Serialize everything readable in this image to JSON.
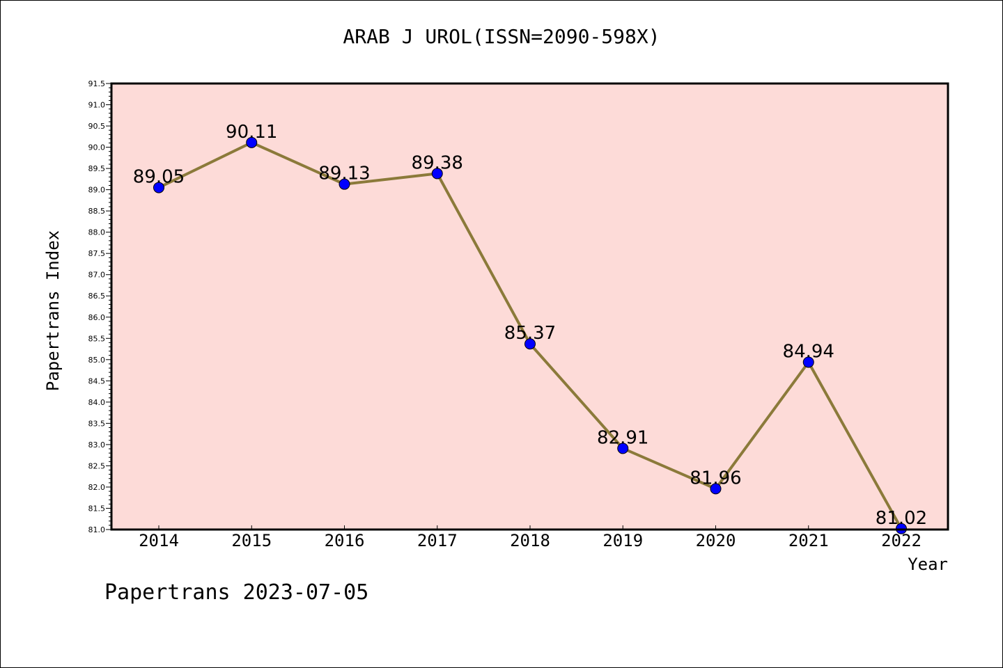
{
  "title": "ARAB J UROL(ISSN=2090-598X)",
  "footer": "Papertrans 2023-07-05",
  "chart_data": {
    "type": "line",
    "title": "ARAB J UROL(ISSN=2090-598X)",
    "xlabel": "Year",
    "ylabel": "Papertrans Index",
    "categories": [
      "2014",
      "2015",
      "2016",
      "2017",
      "2018",
      "2019",
      "2020",
      "2021",
      "2022"
    ],
    "series": [
      {
        "values": [
          89.05,
          90.11,
          89.13,
          89.38,
          85.37,
          82.91,
          81.96,
          84.94,
          81.02
        ],
        "data_labels": [
          "89.05",
          "90.11",
          "89.13",
          "89.38",
          "85.37",
          "82.91",
          "81.96",
          "84.94",
          "81.02"
        ]
      }
    ],
    "ylim": [
      81.0,
      91.5
    ],
    "ytick_step": 0.5,
    "ytick_labels": [
      "81.0",
      "81.5",
      "82.0",
      "82.5",
      "83.0",
      "83.5",
      "84.0",
      "84.5",
      "85.0",
      "85.5",
      "86.0",
      "86.5",
      "87.0",
      "87.5",
      "88.0",
      "88.5",
      "89.0",
      "89.5",
      "90.0",
      "90.5",
      "91.0",
      "91.5"
    ],
    "colors": {
      "plot_background": "#fddbd8",
      "line": "#8b7a3a",
      "marker": "#0000ff"
    },
    "grid": false,
    "legend": "none"
  }
}
